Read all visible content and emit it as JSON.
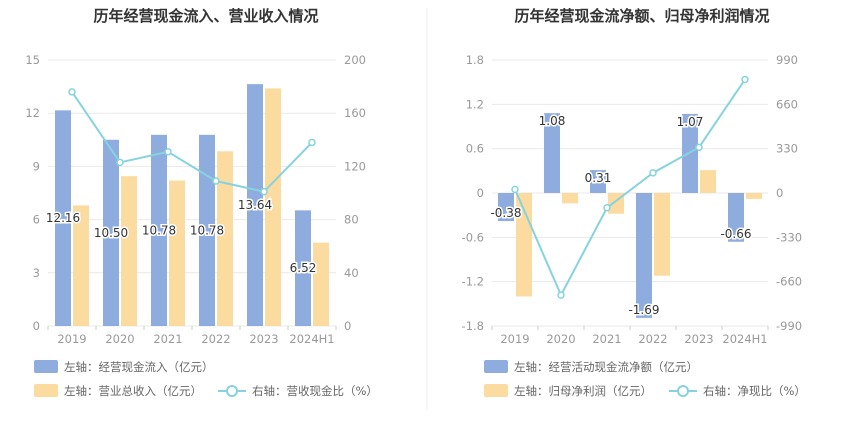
{
  "colors": {
    "bar_primary": "#8eadde",
    "bar_secondary": "#fbdba0",
    "line": "#86d3df",
    "grid": "#e9e9e9",
    "axis_text": "#999999",
    "title": "#333333",
    "label": "#333333",
    "divider": "#eeeeee"
  },
  "chart_data": [
    {
      "type": "bar",
      "title": "历年经营现金流入、营业收入情况",
      "categories": [
        "2019",
        "2020",
        "2021",
        "2022",
        "2023",
        "2024H1"
      ],
      "left_axis": {
        "min": 0,
        "max": 15,
        "ticks": [
          "0",
          "3",
          "6",
          "9",
          "12",
          "15"
        ]
      },
      "right_axis": {
        "min": 0,
        "max": 200,
        "ticks": [
          "0",
          "40",
          "80",
          "120",
          "160",
          "200"
        ]
      },
      "series": [
        {
          "name": "左轴：经营现金流入（亿元）",
          "type": "bar",
          "axis": "left",
          "color_key": "bar_primary",
          "values": [
            12.16,
            10.5,
            10.78,
            10.78,
            13.64,
            6.52
          ],
          "labels": [
            "12.16",
            "10.50",
            "10.78",
            "10.78",
            "13.64",
            "6.52"
          ]
        },
        {
          "name": "左轴：营业总收入（亿元）",
          "type": "bar",
          "axis": "left",
          "color_key": "bar_secondary",
          "values": [
            6.8,
            8.45,
            8.2,
            9.85,
            13.4,
            4.7
          ]
        },
        {
          "name": "右轴：营收现金比（%）",
          "type": "line",
          "axis": "right",
          "color_key": "line",
          "values": [
            176,
            123,
            131,
            109,
            101,
            138
          ]
        }
      ],
      "legend_position": "bottom",
      "grid": true
    },
    {
      "type": "bar",
      "title": "历年经营现金流净额、归母净利润情况",
      "categories": [
        "2019",
        "2020",
        "2021",
        "2022",
        "2023",
        "2024H1"
      ],
      "left_axis": {
        "min": -1.8,
        "max": 1.8,
        "ticks": [
          "-1.8",
          "-1.2",
          "-0.6",
          "0",
          "0.6",
          "1.2",
          "1.8"
        ]
      },
      "right_axis": {
        "min": -990,
        "max": 990,
        "ticks": [
          "-990",
          "-660",
          "-330",
          "0",
          "330",
          "660",
          "990"
        ]
      },
      "series": [
        {
          "name": "左轴：经营活动现金流净额（亿元）",
          "type": "bar",
          "axis": "left",
          "color_key": "bar_primary",
          "values": [
            -0.38,
            1.08,
            0.31,
            -1.69,
            1.07,
            -0.66
          ],
          "labels": [
            "-0.38",
            "1.08",
            "0.31",
            "-1.69",
            "1.07",
            "-0.66"
          ]
        },
        {
          "name": "左轴：归母净利润（亿元）",
          "type": "bar",
          "axis": "left",
          "color_key": "bar_secondary",
          "values": [
            -1.4,
            -0.14,
            -0.28,
            -1.12,
            0.31,
            -0.08
          ]
        },
        {
          "name": "右轴：净现比（%）",
          "type": "line",
          "axis": "right",
          "color_key": "line",
          "values": [
            27,
            -760,
            -110,
            150,
            340,
            845
          ]
        }
      ],
      "legend_position": "bottom",
      "grid": true
    }
  ]
}
